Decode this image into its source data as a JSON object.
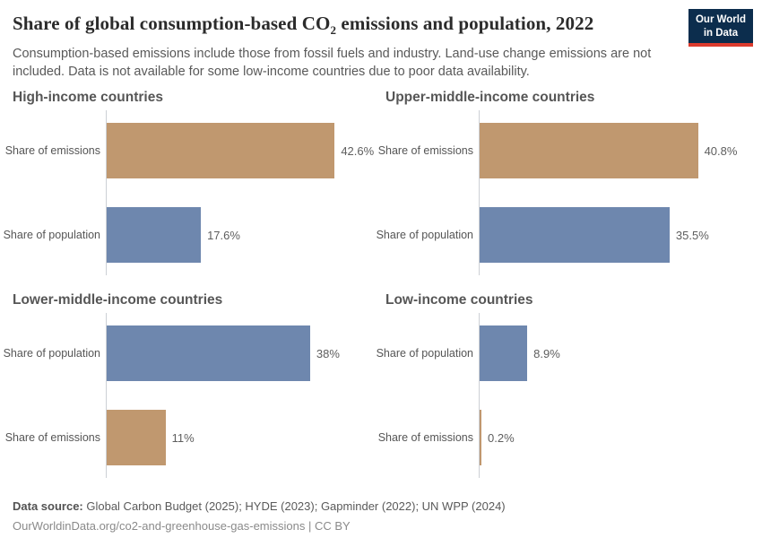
{
  "header": {
    "title_prefix": "Share of global consumption-based CO",
    "title_sub": "2",
    "title_suffix": " emissions and population, 2022",
    "subtitle": "Consumption-based emissions include those from fossil fuels and industry. Land-use change emissions are not included. Data is not available for some low-income countries due to poor data availability.",
    "logo_line1": "Our World",
    "logo_line2": "in Data"
  },
  "colors": {
    "emissions_bar": "#c0986f",
    "population_bar": "#6e87ae",
    "axis_line": "#ccd0d5",
    "logo_bg": "#0c2d4d",
    "logo_accent": "#dc3b2e"
  },
  "chart_data": {
    "type": "bar",
    "orientation": "horizontal",
    "title": "Share of global consumption-based CO2 emissions and population, 2022",
    "subtitle": "Consumption-based emissions include those from fossil fuels and industry. Land-use change emissions are not included. Data is not available for some low-income countries due to poor data availability.",
    "unit": "%",
    "xlim": [
      0,
      50
    ],
    "grid": false,
    "legend": "none",
    "panels": [
      {
        "title": "High-income countries",
        "bars": [
          {
            "label": "Share of emissions",
            "value": 42.6,
            "display": "42.6%",
            "color": "#c0986f"
          },
          {
            "label": "Share of population",
            "value": 17.6,
            "display": "17.6%",
            "color": "#6e87ae"
          }
        ]
      },
      {
        "title": "Upper-middle-income countries",
        "bars": [
          {
            "label": "Share of emissions",
            "value": 40.8,
            "display": "40.8%",
            "color": "#c0986f"
          },
          {
            "label": "Share of population",
            "value": 35.5,
            "display": "35.5%",
            "color": "#6e87ae"
          }
        ]
      },
      {
        "title": "Lower-middle-income countries",
        "bars": [
          {
            "label": "Share of population",
            "value": 38,
            "display": "38%",
            "color": "#6e87ae"
          },
          {
            "label": "Share of emissions",
            "value": 11,
            "display": "11%",
            "color": "#c0986f"
          }
        ]
      },
      {
        "title": "Low-income countries",
        "bars": [
          {
            "label": "Share of population",
            "value": 8.9,
            "display": "8.9%",
            "color": "#6e87ae"
          },
          {
            "label": "Share of emissions",
            "value": 0.2,
            "display": "0.2%",
            "color": "#c0986f"
          }
        ]
      }
    ]
  },
  "footer": {
    "datasource_label": "Data source:",
    "datasource_text": " Global Carbon Budget (2025); HYDE (2023); Gapminder (2022); UN WPP (2024)",
    "link_line": "OurWorldinData.org/co2-and-greenhouse-gas-emissions | CC BY"
  }
}
